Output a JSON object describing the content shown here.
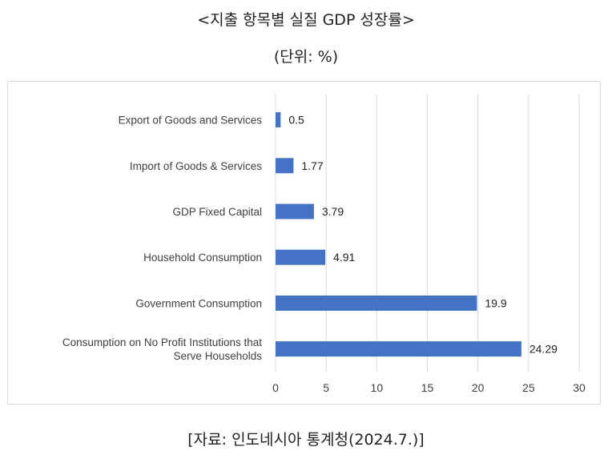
{
  "header": {
    "title": "<지출 항목별 실질 GDP 성장률>",
    "unit": "(단위: %)"
  },
  "footer": {
    "source": "[자료: 인도네시아 통계청(2024.7.)]"
  },
  "colors": {
    "bar": "#4472C4",
    "grid": "#d9d9d9",
    "text": "#404040"
  },
  "chart_data": {
    "type": "bar",
    "orientation": "horizontal",
    "categories": [
      [
        "Export of Goods and Services"
      ],
      [
        "Import of Goods & Services"
      ],
      [
        "GDP Fixed Capital"
      ],
      [
        "Household Consumption"
      ],
      [
        "Government Consumption"
      ],
      [
        "Consumption on No Profit Institutions that",
        "Serve Households"
      ]
    ],
    "values": [
      0.5,
      1.77,
      3.79,
      4.91,
      19.9,
      24.29
    ],
    "value_labels": [
      "0.5",
      "1.77",
      "3.79",
      "4.91",
      "19.9",
      "24.29"
    ],
    "xlim": [
      0,
      30
    ],
    "xticks": [
      "0",
      "5",
      "10",
      "15",
      "20",
      "25",
      "30"
    ],
    "grid": "vertical",
    "legend": "none"
  }
}
